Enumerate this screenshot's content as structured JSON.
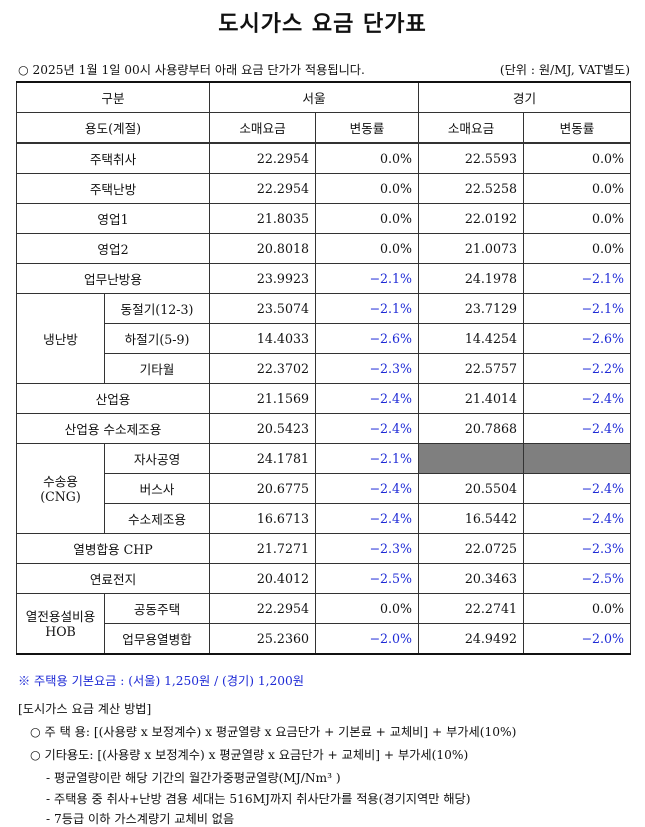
{
  "title": "도시가스 요금 단가표",
  "notice": {
    "left": "○ 2025년 1월 1일 00시 사용량부터 아래 요금 단가가 적용됩니다.",
    "right": "(단위 : 원/MJ, VAT별도)"
  },
  "header": {
    "category": "구분",
    "seoul": "서울",
    "gyeonggi": "경기",
    "usage": "용도(계절)",
    "retail": "소매요금",
    "change": "변동률"
  },
  "rows": [
    {
      "label": "주택취사",
      "seoul_retail": "22.2954",
      "seoul_change": "0.0%",
      "gg_retail": "22.5593",
      "gg_change": "0.0%"
    },
    {
      "label": "주택난방",
      "seoul_retail": "22.2954",
      "seoul_change": "0.0%",
      "gg_retail": "22.5258",
      "gg_change": "0.0%"
    },
    {
      "label": "영업1",
      "seoul_retail": "21.8035",
      "seoul_change": "0.0%",
      "gg_retail": "22.0192",
      "gg_change": "0.0%"
    },
    {
      "label": "영업2",
      "seoul_retail": "20.8018",
      "seoul_change": "0.0%",
      "gg_retail": "21.0073",
      "gg_change": "0.0%"
    },
    {
      "label": "업무난방용",
      "seoul_retail": "23.9923",
      "seoul_change": "−2.1%",
      "gg_retail": "24.1978",
      "gg_change": "−2.1%"
    },
    {
      "group": "냉난방",
      "label": "동절기(12-3)",
      "seoul_retail": "23.5074",
      "seoul_change": "−2.1%",
      "gg_retail": "23.7129",
      "gg_change": "−2.1%"
    },
    {
      "label": "하절기(5-9)",
      "seoul_retail": "14.4033",
      "seoul_change": "−2.6%",
      "gg_retail": "14.4254",
      "gg_change": "−2.6%"
    },
    {
      "label": "기타월",
      "seoul_retail": "22.3702",
      "seoul_change": "−2.3%",
      "gg_retail": "22.5757",
      "gg_change": "−2.2%"
    },
    {
      "label": "산업용",
      "seoul_retail": "21.1569",
      "seoul_change": "−2.4%",
      "gg_retail": "21.4014",
      "gg_change": "−2.4%"
    },
    {
      "label": "산업용 수소제조용",
      "seoul_retail": "20.5423",
      "seoul_change": "−2.4%",
      "gg_retail": "20.7868",
      "gg_change": "−2.4%"
    },
    {
      "group": "수송용\n(CNG)",
      "label": "자사공영",
      "seoul_retail": "24.1781",
      "seoul_change": "−2.1%",
      "gg_retail": "",
      "gg_change": ""
    },
    {
      "label": "버스사",
      "seoul_retail": "20.6775",
      "seoul_change": "−2.4%",
      "gg_retail": "20.5504",
      "gg_change": "−2.4%"
    },
    {
      "label": "수소제조용",
      "seoul_retail": "16.6713",
      "seoul_change": "−2.4%",
      "gg_retail": "16.5442",
      "gg_change": "−2.4%"
    },
    {
      "label": "열병합용 CHP",
      "seoul_retail": "21.7271",
      "seoul_change": "−2.3%",
      "gg_retail": "22.0725",
      "gg_change": "−2.3%"
    },
    {
      "label": "연료전지",
      "seoul_retail": "20.4012",
      "seoul_change": "−2.5%",
      "gg_retail": "20.3463",
      "gg_change": "−2.5%"
    },
    {
      "group": "열전용설비용\nHOB",
      "label": "공동주택",
      "seoul_retail": "22.2954",
      "seoul_change": "0.0%",
      "gg_retail": "22.2741",
      "gg_change": "0.0%"
    },
    {
      "label": "업무용열병합",
      "seoul_retail": "25.2360",
      "seoul_change": "−2.0%",
      "gg_retail": "24.9492",
      "gg_change": "−2.0%"
    }
  ],
  "footnote": "※ 주택용 기본요금 : (서울) 1,250원 / (경기) 1,200원",
  "method": {
    "heading": "[도시가스 요금 계산 방법]",
    "residential": "○ 주 택 용: [(사용량 x 보정계수) x 평균열량 x 요금단가 + 기본료 + 교체비] + 부가세(10%)",
    "other": "○ 기타용도: [(사용량 x 보정계수) x 평균열량 x 요금단가 + 교체비] + 부가세(10%)",
    "note1": "- 평균열량이란 해당 기간의 월간가중평균열량(MJ/Nm³ )",
    "note2": "- 주택용 중 취사+난방 겸용 세대는 516MJ까지 취사단가를 적용(경기지역만 해당)",
    "note3": "- 7등급 이하 가스계량기 교체비 없음"
  }
}
